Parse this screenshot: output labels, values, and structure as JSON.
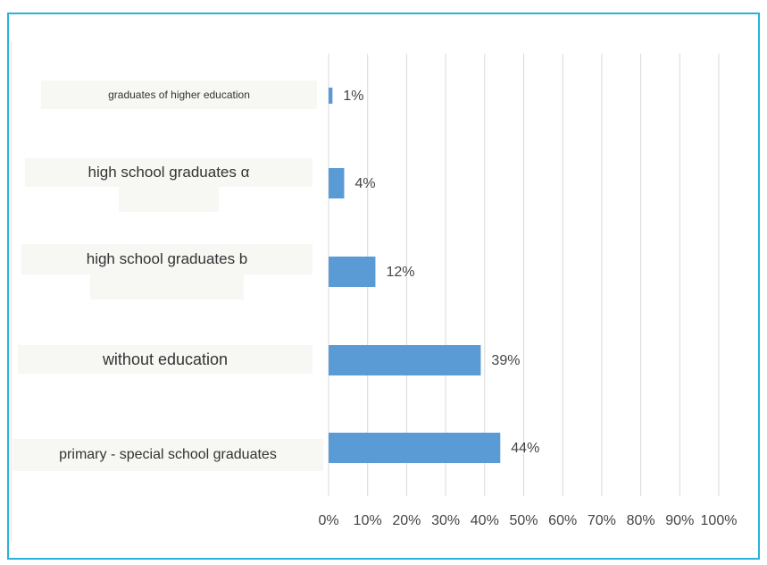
{
  "chart_data": {
    "type": "bar",
    "orientation": "horizontal",
    "categories": [
      "graduates of higher education",
      "high school graduates α",
      "high school graduates b",
      "without education",
      "primary - special school graduates"
    ],
    "values": [
      1,
      4,
      12,
      39,
      44
    ],
    "value_labels": [
      "1%",
      "4%",
      "12%",
      "39%",
      "44%"
    ],
    "xlim": [
      0,
      100
    ],
    "xticks": [
      "0%",
      "10%",
      "20%",
      "30%",
      "40%",
      "50%",
      "60%",
      "70%",
      "80%",
      "90%",
      "100%"
    ],
    "grid": "vertical",
    "legend": "none",
    "bar_color": "#5b9bd5",
    "gridline_color": "#d9d9d9",
    "border_color": "#27b3db"
  }
}
